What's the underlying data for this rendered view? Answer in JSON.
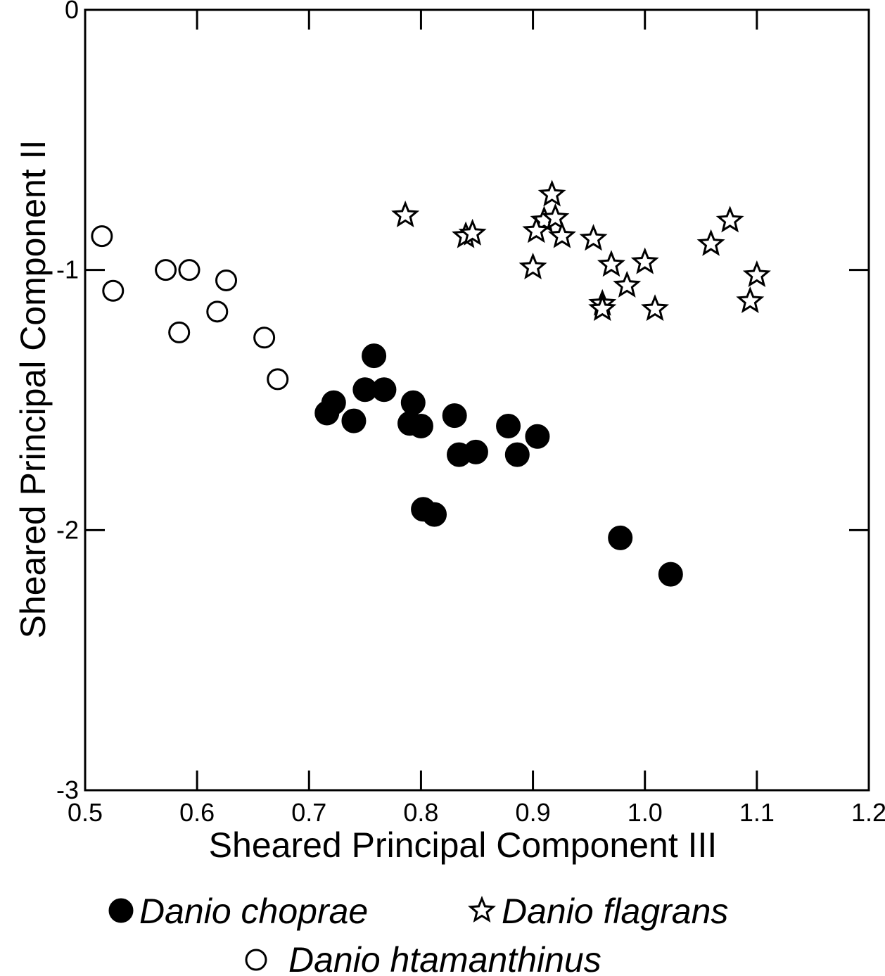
{
  "chart_data": {
    "type": "scatter",
    "xlabel": "Sheared Principal Component III",
    "ylabel": "Sheared Principal Component II",
    "xlim": [
      0.5,
      1.2
    ],
    "ylim": [
      -3,
      0
    ],
    "xticks": [
      "0.5",
      "0.6",
      "0.7",
      "0.8",
      "0.9",
      "1.0",
      "1.1",
      "1.2"
    ],
    "yticks": [
      "0",
      "-1",
      "-2",
      "-3"
    ],
    "grid": false,
    "legend_position": "bottom",
    "series": [
      {
        "name": "Danio choprae",
        "marker": "filled-circle",
        "points": [
          [
            0.758,
            -1.33
          ],
          [
            0.75,
            -1.46
          ],
          [
            0.767,
            -1.46
          ],
          [
            0.722,
            -1.51
          ],
          [
            0.716,
            -1.55
          ],
          [
            0.74,
            -1.58
          ],
          [
            0.793,
            -1.51
          ],
          [
            0.79,
            -1.59
          ],
          [
            0.8,
            -1.6
          ],
          [
            0.83,
            -1.56
          ],
          [
            0.878,
            -1.6
          ],
          [
            0.904,
            -1.64
          ],
          [
            0.834,
            -1.71
          ],
          [
            0.849,
            -1.7
          ],
          [
            0.886,
            -1.71
          ],
          [
            0.802,
            -1.92
          ],
          [
            0.812,
            -1.94
          ],
          [
            0.978,
            -2.03
          ],
          [
            1.023,
            -2.17
          ]
        ]
      },
      {
        "name": "Danio flagrans",
        "marker": "star",
        "points": [
          [
            0.786,
            -0.79
          ],
          [
            0.84,
            -0.87
          ],
          [
            0.846,
            -0.86
          ],
          [
            0.917,
            -0.71
          ],
          [
            0.91,
            -0.81
          ],
          [
            0.92,
            -0.8
          ],
          [
            0.903,
            -0.85
          ],
          [
            0.926,
            -0.87
          ],
          [
            0.954,
            -0.88
          ],
          [
            0.9,
            -0.99
          ],
          [
            0.97,
            -0.98
          ],
          [
            1.0,
            -0.97
          ],
          [
            0.984,
            -1.06
          ],
          [
            0.962,
            -1.13
          ],
          [
            0.962,
            -1.15
          ],
          [
            1.009,
            -1.15
          ],
          [
            1.059,
            -0.9
          ],
          [
            1.076,
            -0.81
          ],
          [
            1.1,
            -1.02
          ],
          [
            1.094,
            -1.12
          ]
        ]
      },
      {
        "name": "Danio htamanthinus",
        "marker": "open-circle",
        "points": [
          [
            0.515,
            -0.87
          ],
          [
            0.525,
            -1.08
          ],
          [
            0.572,
            -1.0
          ],
          [
            0.593,
            -1.0
          ],
          [
            0.626,
            -1.04
          ],
          [
            0.618,
            -1.16
          ],
          [
            0.584,
            -1.24
          ],
          [
            0.66,
            -1.26
          ],
          [
            0.672,
            -1.42
          ]
        ]
      }
    ]
  }
}
